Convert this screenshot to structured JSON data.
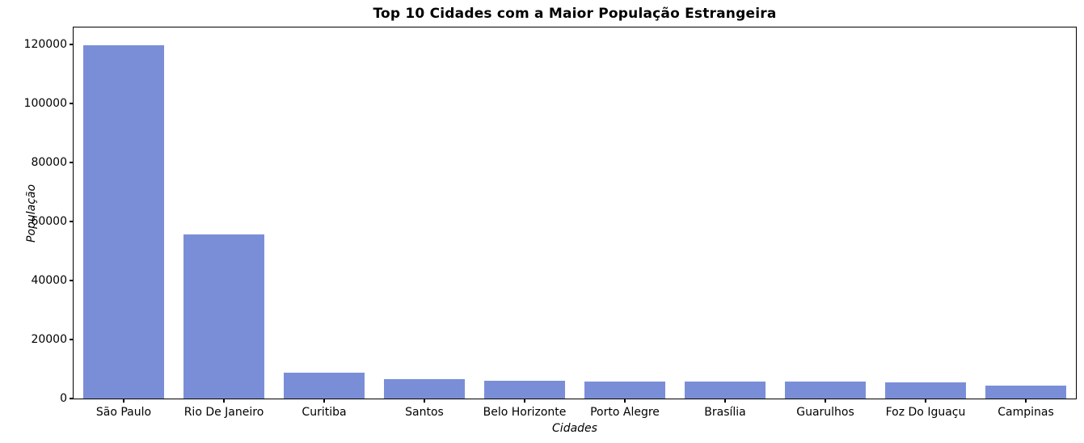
{
  "chart_data": {
    "type": "bar",
    "title": "Top 10 Cidades com a Maior População Estrangeira",
    "xlabel": "Cidades",
    "ylabel": "População",
    "categories": [
      "São Paulo",
      "Rio De Janeiro",
      "Curitiba",
      "Santos",
      "Belo Horizonte",
      "Porto Alegre",
      "Brasília",
      "Guarulhos",
      "Foz Do Iguaçu",
      "Campinas"
    ],
    "values": [
      119700,
      55500,
      8700,
      6700,
      6100,
      5900,
      5800,
      5650,
      5550,
      4300
    ],
    "yticks": [
      0,
      20000,
      40000,
      60000,
      80000,
      100000,
      120000
    ],
    "ylim": [
      0,
      125700
    ],
    "bar_color": "#7a8ed8",
    "bar_width_fraction": 0.8,
    "grid": false,
    "legend": null,
    "frame": "full-box",
    "background_color": "#ffffff",
    "text_color": "#000000"
  }
}
